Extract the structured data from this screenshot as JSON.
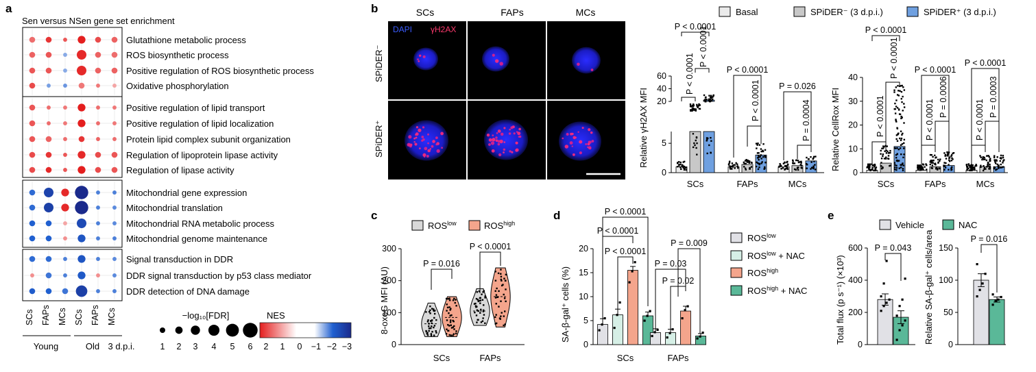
{
  "panels": {
    "a": {
      "letter": "a",
      "title": "Sen versus NSen gene set enrichment",
      "columns": [
        "SCs",
        "FAPs",
        "MCs",
        "SCs",
        "FAPs",
        "MCs"
      ],
      "groups": [
        "Young",
        "Old",
        "3 d.p.i."
      ],
      "size_legend": {
        "title": "−log₁₀[FDR]",
        "values": [
          1,
          2,
          3,
          4,
          5,
          6
        ]
      },
      "color_legend": {
        "title": "NES",
        "ticks": [
          "2",
          "1",
          "0",
          "−1",
          "−2",
          "−3"
        ],
        "colors": {
          "positive": "#e02020",
          "zero": "#ffffff",
          "negative": "#1a2a8c"
        }
      }
    },
    "b": {
      "letter": "b",
      "image_cols": [
        "SCs",
        "FAPs",
        "MCs"
      ],
      "image_rows": [
        "SPiDER⁻",
        "SPiDER⁺"
      ],
      "stain_labels": [
        "DAPI",
        "γH2AX"
      ],
      "legend": [
        "Basal",
        "SPiDER⁻ (3 d.p.i.)",
        "SPiDER⁺ (3 d.p.i.)"
      ]
    },
    "c": {
      "letter": "c"
    },
    "d": {
      "letter": "d"
    },
    "e": {
      "letter": "e",
      "legend": [
        "Vehicle",
        "NAC"
      ]
    }
  },
  "chart_data": [
    {
      "panel": "a",
      "type": "heatmap",
      "title": "Sen versus NSen gene set enrichment",
      "columns": [
        "SCs",
        "FAPs",
        "MCs",
        "SCs",
        "FAPs",
        "MCs"
      ],
      "column_groups": [
        {
          "name": "Young",
          "columns": [
            0,
            1,
            2
          ]
        },
        {
          "name": "Old",
          "columns": [
            3,
            4,
            5
          ]
        },
        {
          "name": "3 d.p.i.",
          "columns": [
            3,
            4,
            5
          ]
        }
      ],
      "rows": [
        {
          "label": "Glutathione metabolic process",
          "nes": [
            1.3,
            1.8,
            1.5,
            2.0,
            1.6,
            1.4
          ],
          "log_fdr": [
            2,
            2,
            1,
            3,
            2,
            2
          ]
        },
        {
          "label": "ROS biosynthetic process",
          "nes": [
            1.4,
            1.5,
            -0.8,
            1.9,
            1.4,
            1.3
          ],
          "log_fdr": [
            2,
            2,
            1,
            4,
            2,
            2
          ]
        },
        {
          "label": "Positive regulation of ROS biosynthetic process",
          "nes": [
            1.5,
            1.5,
            -0.8,
            1.9,
            1.4,
            1.4
          ],
          "log_fdr": [
            2,
            2,
            1,
            4,
            2,
            2
          ]
        },
        {
          "label": "Oxidative phosphorylation",
          "nes": [
            1.6,
            -0.9,
            -1.0,
            1.2,
            1.2,
            0.8
          ],
          "log_fdr": [
            2,
            1,
            1,
            2,
            1,
            1
          ]
        },
        {
          "label": "Positive regulation of lipid transport",
          "nes": [
            1.5,
            1.3,
            1.2,
            2.1,
            1.3,
            1.2
          ],
          "log_fdr": [
            2,
            1,
            1,
            3,
            1,
            1
          ]
        },
        {
          "label": "Positive regulation of lipid localization",
          "nes": [
            1.5,
            1.3,
            1.2,
            2.1,
            1.3,
            1.2
          ],
          "log_fdr": [
            2,
            1,
            1,
            3,
            1,
            1
          ]
        },
        {
          "label": "Protein lipid complex subunit organization",
          "nes": [
            1.5,
            1.4,
            1.3,
            1.8,
            1.4,
            1.3
          ],
          "log_fdr": [
            2,
            2,
            1,
            2,
            1,
            1
          ]
        },
        {
          "label": "Regulation of lipoprotein lipase activity",
          "nes": [
            1.6,
            1.8,
            1.5,
            1.9,
            1.6,
            1.5
          ],
          "log_fdr": [
            2,
            2,
            1,
            3,
            2,
            2
          ]
        },
        {
          "label": "Regulation of lipase activity",
          "nes": [
            1.6,
            1.9,
            1.5,
            2.0,
            1.6,
            1.5
          ],
          "log_fdr": [
            2,
            2,
            1,
            3,
            2,
            2
          ]
        },
        {
          "label": "Mitochondrial gene expression",
          "nes": [
            -1.4,
            -2.3,
            1.9,
            -3.0,
            -1.2,
            -1.2
          ],
          "log_fdr": [
            2,
            4,
            3,
            6,
            1,
            1
          ]
        },
        {
          "label": "Mitochondrial translation",
          "nes": [
            -1.4,
            -2.4,
            1.9,
            -3.0,
            -1.2,
            -1.1
          ],
          "log_fdr": [
            2,
            4,
            3,
            6,
            1,
            1
          ]
        },
        {
          "label": "Mitochondrial RNA metabolic process",
          "nes": [
            -1.5,
            -1.5,
            0.8,
            -2.1,
            -1.2,
            -1.1
          ],
          "log_fdr": [
            2,
            2,
            1,
            4,
            1,
            1
          ]
        },
        {
          "label": "Mitochondrial genome maintenance",
          "nes": [
            -1.5,
            -1.5,
            1.0,
            -1.8,
            -1.2,
            -1.2
          ],
          "log_fdr": [
            2,
            2,
            1,
            3,
            1,
            1
          ]
        },
        {
          "label": "Signal transduction in DDR",
          "nes": [
            -1.4,
            -1.4,
            -1.2,
            -1.8,
            -1.2,
            -1.1
          ],
          "log_fdr": [
            2,
            2,
            1,
            3,
            1,
            1
          ]
        },
        {
          "label": "DDR signal transduction by p53 class mediator",
          "nes": [
            1.0,
            -1.3,
            -1.2,
            -1.7,
            1.0,
            -1.1
          ],
          "log_fdr": [
            1,
            2,
            1,
            3,
            1,
            1
          ]
        },
        {
          "label": "DDR detection of DNA damage",
          "nes": [
            -1.6,
            -1.5,
            -1.3,
            -2.4,
            -1.2,
            -1.2
          ],
          "log_fdr": [
            2,
            2,
            2,
            5,
            1,
            1
          ]
        }
      ],
      "row_blocks": [
        [
          0,
          3
        ],
        [
          4,
          8
        ],
        [
          9,
          12
        ],
        [
          13,
          15
        ]
      ]
    },
    {
      "panel": "b-left",
      "type": "bar",
      "ylabel": "Relative γH2AX MFI",
      "categories": [
        "SCs",
        "FAPs",
        "MCs"
      ],
      "series": [
        {
          "name": "Basal",
          "values": [
            1,
            1,
            1
          ],
          "color": "#ebebeb"
        },
        {
          "name": "SPiDER⁻ (3 d.p.i.)",
          "values": [
            8,
            1.4,
            1.2
          ],
          "color": "#c8c8c8"
        },
        {
          "name": "SPiDER⁺ (3 d.p.i.)",
          "values": [
            22,
            3,
            2
          ],
          "color": "#6fa0e0"
        }
      ],
      "axis_breaks": {
        "lower": [
          0,
          7
        ],
        "upper": [
          20,
          60
        ]
      },
      "yticks_lower": [
        0,
        5
      ],
      "yticks_upper": [
        20,
        40,
        60
      ],
      "annotations": [
        {
          "text": "P < 0.0001",
          "group": "SCs",
          "pair": [
            "Basal",
            "SPiDER⁺ (3 d.p.i.)"
          ]
        },
        {
          "text": "P < 0.0001",
          "group": "SCs",
          "pair": [
            "Basal",
            "SPiDER⁻ (3 d.p.i.)"
          ]
        },
        {
          "text": "P < 0.0001",
          "group": "SCs",
          "pair": [
            "SPiDER⁻ (3 d.p.i.)",
            "SPiDER⁺ (3 d.p.i.)"
          ]
        },
        {
          "text": "P < 0.0001",
          "group": "FAPs",
          "pair": [
            "Basal",
            "SPiDER⁺ (3 d.p.i.)"
          ]
        },
        {
          "text": "P < 0.0001",
          "group": "FAPs",
          "pair": [
            "SPiDER⁻ (3 d.p.i.)",
            "SPiDER⁺ (3 d.p.i.)"
          ]
        },
        {
          "text": "P = 0.026",
          "group": "MCs",
          "pair": [
            "Basal",
            "SPiDER⁺ (3 d.p.i.)"
          ]
        },
        {
          "text": "P = 0.0004",
          "group": "MCs",
          "pair": [
            "SPiDER⁻ (3 d.p.i.)",
            "SPiDER⁺ (3 d.p.i.)"
          ]
        }
      ]
    },
    {
      "panel": "b-right",
      "type": "bar",
      "ylabel": "Relative CellRox MFI",
      "categories": [
        "SCs",
        "FAPs",
        "MCs"
      ],
      "series": [
        {
          "name": "Basal",
          "values": [
            1,
            1,
            1
          ],
          "color": "#ebebeb"
        },
        {
          "name": "SPiDER⁻ (3 d.p.i.)",
          "values": [
            4,
            2.5,
            2.5
          ],
          "color": "#c8c8c8"
        },
        {
          "name": "SPiDER⁺ (3 d.p.i.)",
          "values": [
            11,
            3,
            2.5
          ],
          "color": "#6fa0e0"
        }
      ],
      "ylim": [
        0,
        40
      ],
      "yticks": [
        0,
        10,
        20,
        30,
        40
      ],
      "annotations": [
        {
          "text": "P < 0.0001",
          "group": "SCs",
          "pair": [
            "Basal",
            "SPiDER⁺ (3 d.p.i.)"
          ]
        },
        {
          "text": "P < 0.0001",
          "group": "SCs",
          "pair": [
            "Basal",
            "SPiDER⁻ (3 d.p.i.)"
          ]
        },
        {
          "text": "P < 0.0001",
          "group": "SCs",
          "pair": [
            "SPiDER⁻ (3 d.p.i.)",
            "SPiDER⁺ (3 d.p.i.)"
          ]
        },
        {
          "text": "P < 0.0001",
          "group": "FAPs",
          "pair": [
            "Basal",
            "SPiDER⁺ (3 d.p.i.)"
          ]
        },
        {
          "text": "P < 0.0001",
          "group": "FAPs",
          "pair": [
            "Basal",
            "SPiDER⁻ (3 d.p.i.)"
          ]
        },
        {
          "text": "P = 0.0006",
          "group": "FAPs",
          "pair": [
            "SPiDER⁻ (3 d.p.i.)",
            "SPiDER⁺ (3 d.p.i.)"
          ]
        },
        {
          "text": "P < 0.0001",
          "group": "MCs",
          "pair": [
            "Basal",
            "SPiDER⁺ (3 d.p.i.)"
          ]
        },
        {
          "text": "P < 0.0001",
          "group": "MCs",
          "pair": [
            "Basal",
            "SPiDER⁻ (3 d.p.i.)"
          ]
        },
        {
          "text": "P = 0.0003",
          "group": "MCs",
          "pair": [
            "SPiDER⁻ (3 d.p.i.)",
            "SPiDER⁺ (3 d.p.i.)"
          ]
        }
      ]
    },
    {
      "panel": "c",
      "type": "violin",
      "ylabel": "8-oxoG MFI (AU)",
      "categories": [
        "SCs",
        "FAPs"
      ],
      "series": [
        {
          "name": "ROS^low",
          "medians": [
            65,
            105
          ],
          "range": [
            [
              25,
              130
            ],
            [
              60,
              175
            ]
          ],
          "color": "#d9d9d9"
        },
        {
          "name": "ROS^high",
          "medians": [
            85,
            150
          ],
          "range": [
            [
              25,
              150
            ],
            [
              55,
              240
            ]
          ],
          "color": "#f4a58c"
        }
      ],
      "ylim": [
        0,
        300
      ],
      "yticks": [
        0,
        100,
        200,
        300
      ],
      "annotations": [
        {
          "text": "P = 0.016",
          "group": "SCs"
        },
        {
          "text": "P < 0.0001",
          "group": "FAPs"
        }
      ]
    },
    {
      "panel": "d",
      "type": "bar",
      "ylabel": "SA-β-gal⁺ cells (%)",
      "categories": [
        "SCs",
        "FAPs"
      ],
      "series": [
        {
          "name": "ROS^low",
          "values": [
            4.2,
            2.5
          ],
          "errors": [
            1.2,
            0.8
          ],
          "points": [
            [
              3,
              4.2,
              5.5
            ],
            [
              1.8,
              2.6,
              3.1
            ]
          ],
          "color": "#e1e1e6"
        },
        {
          "name": "ROS^low + NAC",
          "values": [
            6.2,
            2.5
          ],
          "errors": [
            1.2,
            0.7
          ],
          "points": [
            [
              3.5,
              6.2,
              8.8
            ],
            [
              1.5,
              2.4,
              3.2
            ]
          ],
          "color": "#d6efe6"
        },
        {
          "name": "ROS^high",
          "values": [
            15.5,
            7.0
          ],
          "errors": [
            0.8,
            1.0
          ],
          "points": [
            [
              13,
              15.3,
              17.2
            ],
            [
              5.5,
              7.2,
              8
            ]
          ],
          "color": "#f4a58c"
        },
        {
          "name": "ROS^high + NAC",
          "values": [
            6.0,
            1.8
          ],
          "errors": [
            0.8,
            0.5
          ],
          "points": [
            [
              5,
              6,
              7
            ],
            [
              1.3,
              1.7,
              2.5
            ]
          ],
          "color": "#5ab898"
        }
      ],
      "ylim": [
        0,
        20
      ],
      "yticks": [
        0,
        5,
        10,
        15,
        20
      ],
      "annotations": [
        {
          "text": "P < 0.0001",
          "group": "SCs",
          "pair": [
            "ROS^low",
            "ROS^high + NAC"
          ]
        },
        {
          "text": "P < 0.0001",
          "group": "SCs",
          "pair": [
            "ROS^low",
            "ROS^high"
          ]
        },
        {
          "text": "P < 0.0001",
          "group": "SCs",
          "pair": [
            "ROS^low + NAC",
            "ROS^high"
          ]
        },
        {
          "text": "P = 0.009",
          "group": "FAPs",
          "pair": [
            "ROS^high",
            "ROS^high + NAC"
          ]
        },
        {
          "text": "P = 0.03",
          "group": "FAPs",
          "pair": [
            "ROS^low",
            "ROS^high"
          ]
        },
        {
          "text": "P = 0.02",
          "group": "FAPs",
          "pair": [
            "ROS^low + NAC",
            "ROS^high"
          ]
        }
      ]
    },
    {
      "panel": "e-left",
      "type": "bar",
      "ylabel": "Total flux (p s⁻¹) (×10³)",
      "categories": [
        "Vehicle",
        "NAC"
      ],
      "values": [
        280,
        170
      ],
      "errors": [
        35,
        40
      ],
      "points": [
        [
          210,
          240,
          260,
          280,
          300,
          380,
          520
        ],
        [
          30,
          90,
          120,
          150,
          180,
          240,
          280,
          410
        ]
      ],
      "colors": [
        "#e1e1e6",
        "#5ab898"
      ],
      "ylim": [
        0,
        600
      ],
      "yticks": [
        0,
        200,
        400,
        600
      ],
      "annotations": [
        {
          "text": "P = 0.043"
        }
      ]
    },
    {
      "panel": "e-right",
      "type": "bar",
      "ylabel": "Relative SA-β-gal⁺ cells/area",
      "categories": [
        "Vehicle",
        "NAC"
      ],
      "values": [
        100,
        70
      ],
      "errors": [
        10,
        4
      ],
      "points": [
        [
          75,
          85,
          95,
          110,
          125
        ],
        [
          62,
          68,
          70,
          74,
          78
        ]
      ],
      "colors": [
        "#e1e1e6",
        "#5ab898"
      ],
      "ylim": [
        0,
        150
      ],
      "yticks": [
        0,
        50,
        100,
        150
      ],
      "annotations": [
        {
          "text": "P = 0.016"
        }
      ]
    }
  ]
}
